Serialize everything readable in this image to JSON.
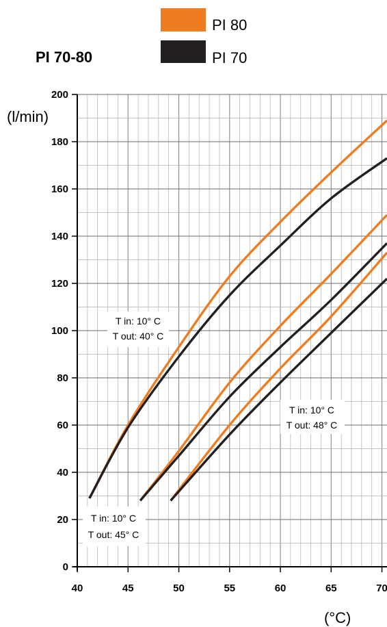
{
  "chart_data": {
    "type": "line",
    "title": "PI 70-80",
    "ylabel": "(l/min)",
    "xlabel": "(°C)",
    "xlim": [
      40,
      70.5
    ],
    "ylim": [
      0,
      200
    ],
    "x_ticks": [
      40,
      45,
      50,
      55,
      60,
      65,
      70
    ],
    "y_ticks": [
      0,
      20,
      40,
      60,
      80,
      100,
      120,
      140,
      160,
      180,
      200
    ],
    "grid": true,
    "legend": [
      {
        "name": "PI 80",
        "color": "#ee7d22"
      },
      {
        "name": "PI 70",
        "color": "#231f20"
      }
    ],
    "series": [
      {
        "name": "PI 80",
        "group": "Tin 10 / Tout 40",
        "color": "#ee7d22",
        "x": [
          41.2,
          45,
          50,
          55,
          60,
          65,
          70.5
        ],
        "y": [
          29,
          60,
          93,
          123,
          146,
          167,
          189
        ]
      },
      {
        "name": "PI 70",
        "group": "Tin 10 / Tout 40",
        "color": "#231f20",
        "x": [
          41.2,
          45,
          50,
          55,
          60,
          65,
          70.5
        ],
        "y": [
          29,
          59,
          89,
          115,
          136,
          156,
          173
        ]
      },
      {
        "name": "PI 80",
        "group": "Tin 10 / Tout 45",
        "color": "#ee7d22",
        "x": [
          46.2,
          50,
          55,
          60,
          65,
          70.5
        ],
        "y": [
          28,
          49,
          78,
          102,
          124,
          149
        ]
      },
      {
        "name": "PI 70",
        "group": "Tin 10 / Tout 45",
        "color": "#231f20",
        "x": [
          46.2,
          50,
          55,
          60,
          65,
          70.5
        ],
        "y": [
          28,
          47,
          72,
          93,
          113,
          137
        ]
      },
      {
        "name": "PI 80",
        "group": "Tin 10 / Tout 48",
        "color": "#ee7d22",
        "x": [
          49.2,
          55,
          60,
          65,
          70.5
        ],
        "y": [
          28,
          60,
          84,
          106,
          133
        ]
      },
      {
        "name": "PI 70",
        "group": "Tin 10 / Tout 48",
        "color": "#231f20",
        "x": [
          49.2,
          55,
          60,
          65,
          70.5
        ],
        "y": [
          28,
          56,
          78,
          99,
          122
        ]
      }
    ],
    "annotations": [
      {
        "line1": "T in: 10° C",
        "line2": "T out: 40° C"
      },
      {
        "line1": "T in: 10° C",
        "line2": "T out: 45° C"
      },
      {
        "line1": "T in: 10° C",
        "line2": "T out: 48° C"
      }
    ]
  }
}
